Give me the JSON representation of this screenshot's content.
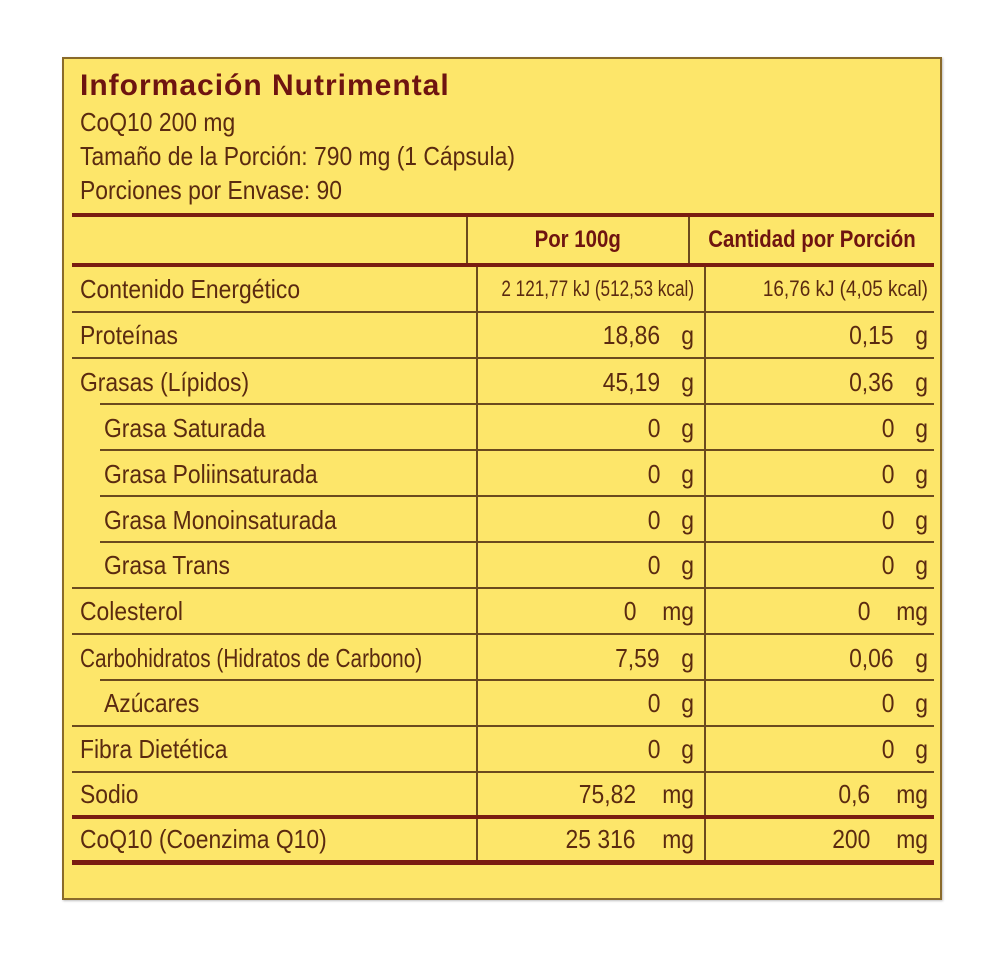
{
  "header": {
    "title": "Información Nutrimental",
    "product": "CoQ10 200 mg",
    "serving_size": "Tamaño de la Porción: 790 mg (1 Cápsula)",
    "servings_per_container": "Porciones por Envase: 90"
  },
  "table": {
    "columns": [
      "",
      "Por 100g",
      "Cantidad por Porción"
    ],
    "energy": {
      "label": "Contenido Energético",
      "per100": "2 121,77 kJ (512,53 kcal)",
      "perServing": "16,76 kJ (4,05 kcal)"
    },
    "rows": [
      {
        "label": "Proteínas",
        "per100": "18,86",
        "perServing": "0,15",
        "unit": "g"
      },
      {
        "label": "Grasas (Lípidos)",
        "per100": "45,19",
        "perServing": "0,36",
        "unit": "g"
      },
      {
        "label": "Grasa Saturada",
        "per100": "0",
        "perServing": "0",
        "unit": "g"
      },
      {
        "label": "Grasa Poliinsaturada",
        "per100": "0",
        "perServing": "0",
        "unit": "g"
      },
      {
        "label": "Grasa Monoinsaturada",
        "per100": "0",
        "perServing": "0",
        "unit": "g"
      },
      {
        "label": "Grasa Trans",
        "per100": "0",
        "perServing": "0",
        "unit": "g"
      },
      {
        "label": "Colesterol",
        "per100": "0",
        "perServing": "0",
        "unit": "mg"
      },
      {
        "label": "Carbohidratos (Hidratos de Carbono)",
        "per100": "7,59",
        "perServing": "0,06",
        "unit": "g"
      },
      {
        "label": "Azúcares",
        "per100": "0",
        "perServing": "0",
        "unit": "g"
      },
      {
        "label": "Fibra Dietética",
        "per100": "0",
        "perServing": "0",
        "unit": "g"
      },
      {
        "label": "Sodio",
        "per100": "75,82",
        "perServing": "0,6",
        "unit": "mg"
      },
      {
        "label": "CoQ10 (Coenzima Q10)",
        "per100": "25 316",
        "perServing": "200",
        "unit": "mg"
      }
    ]
  },
  "colors": {
    "background": "#fde66a",
    "title": "#6e1410",
    "text": "#5a2a10",
    "rule": "#7a1c10"
  }
}
